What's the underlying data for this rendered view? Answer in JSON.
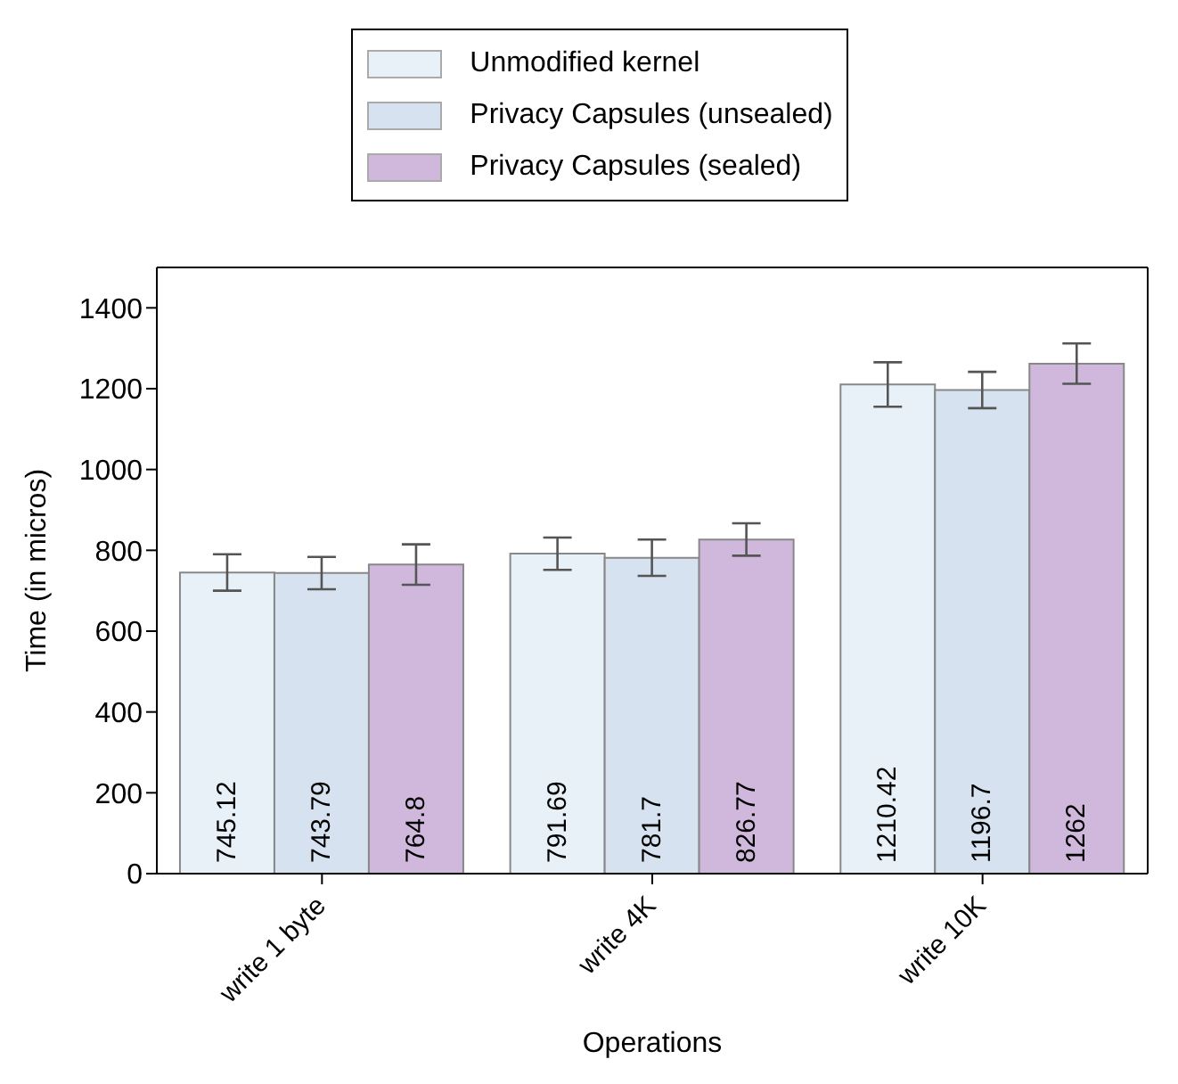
{
  "chart_data": {
    "type": "bar",
    "xlabel": "Operations",
    "ylabel": "Time (in micros)",
    "categories": [
      "write 1 byte",
      "write 4K",
      "write 10K"
    ],
    "series": [
      {
        "name": "Unmodified kernel",
        "color": "#e8f1f7",
        "values": [
          745.12,
          791.69,
          1210.42
        ],
        "errors": [
          45,
          40,
          55
        ]
      },
      {
        "name": "Privacy Capsules (unsealed)",
        "color": "#d6e2ef",
        "values": [
          743.79,
          781.7,
          1196.7
        ],
        "errors": [
          40,
          45,
          45
        ]
      },
      {
        "name": "Privacy Capsules (sealed)",
        "color": "#cfb8dc",
        "values": [
          764.8,
          826.77,
          1262
        ],
        "errors": [
          50,
          40,
          50
        ]
      }
    ],
    "ylim": [
      0,
      1500
    ],
    "yticks": [
      0,
      200,
      400,
      600,
      800,
      1000,
      1200,
      1400
    ],
    "data_labels": true,
    "legend": "top",
    "grid": false
  }
}
